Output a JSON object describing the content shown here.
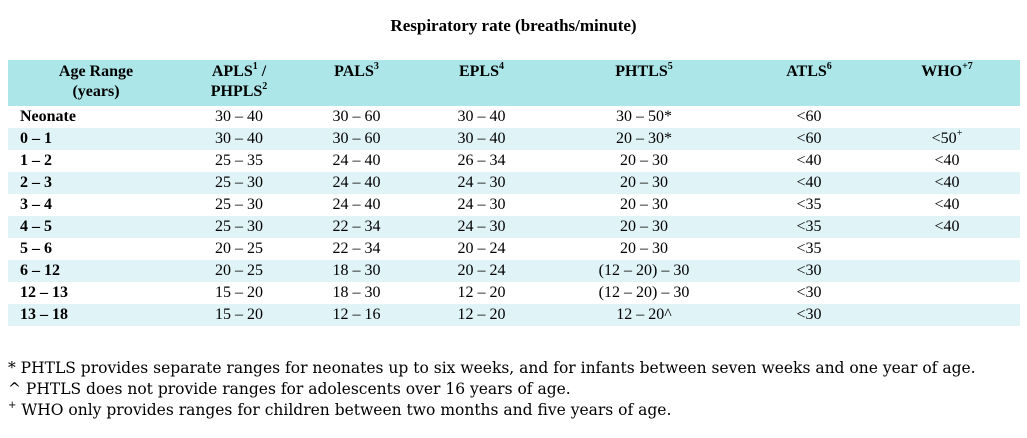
{
  "title": "Respiratory rate (breaths/minute)",
  "headers": [
    {
      "key": "age",
      "label": "Age Range",
      "label2": "(years)",
      "sup": "",
      "label3": ""
    },
    {
      "key": "apls",
      "label": "APLS",
      "sup": "1",
      "label_after": " /",
      "label2": "PHPLS",
      "sup2": "2"
    },
    {
      "key": "pals",
      "label": "PALS",
      "sup": "3"
    },
    {
      "key": "epls",
      "label": "EPLS",
      "sup": "4"
    },
    {
      "key": "phtls",
      "label": "PHTLS",
      "sup": "5"
    },
    {
      "key": "atls",
      "label": "ATLS",
      "sup": "6"
    },
    {
      "key": "who",
      "label": "WHO",
      "sup": "+7"
    }
  ],
  "rows": [
    {
      "age": "Neonate",
      "apls": "30 – 40",
      "pals": "30 – 60",
      "epls": "30 – 40",
      "phtls": "30 – 50*",
      "atls": "<60",
      "who": "",
      "who_sup": ""
    },
    {
      "age": "0 – 1",
      "apls": "30 – 40",
      "pals": "30 – 60",
      "epls": "30 – 40",
      "phtls": "20 – 30*",
      "atls": "<60",
      "who": "<50",
      "who_sup": "+"
    },
    {
      "age": "1 – 2",
      "apls": "25 – 35",
      "pals": "24 – 40",
      "epls": "26 – 34",
      "phtls": "20 – 30",
      "atls": "<40",
      "who": "<40",
      "who_sup": ""
    },
    {
      "age": "2 – 3",
      "apls": "25 – 30",
      "pals": "24 – 40",
      "epls": "24 – 30",
      "phtls": "20 – 30",
      "atls": "<40",
      "who": "<40",
      "who_sup": ""
    },
    {
      "age": "3 – 4",
      "apls": "25 – 30",
      "pals": "24 – 40",
      "epls": "24 – 30",
      "phtls": "20 – 30",
      "atls": "<35",
      "who": "<40",
      "who_sup": ""
    },
    {
      "age": "4 – 5",
      "apls": "25 – 30",
      "pals": "22 – 34",
      "epls": "24 – 30",
      "phtls": "20 – 30",
      "atls": "<35",
      "who": "<40",
      "who_sup": ""
    },
    {
      "age": "5 – 6",
      "apls": "20 – 25",
      "pals": "22 – 34",
      "epls": "20 – 24",
      "phtls": "20 – 30",
      "atls": "<35",
      "who": "",
      "who_sup": ""
    },
    {
      "age": "6 – 12",
      "apls": "20 – 25",
      "pals": "18 – 30",
      "epls": "20 – 24",
      "phtls": "(12 – 20) – 30",
      "atls": "<30",
      "who": "",
      "who_sup": ""
    },
    {
      "age": "12 – 13",
      "apls": "15 – 20",
      "pals": "18 – 30",
      "epls": "12 – 20",
      "phtls": "(12 – 20) – 30",
      "atls": "<30",
      "who": "",
      "who_sup": ""
    },
    {
      "age": "13 – 18",
      "apls": "15 – 20",
      "pals": "12 – 16",
      "epls": "12 – 20",
      "phtls": "12 – 20^",
      "atls": "<30",
      "who": "",
      "who_sup": ""
    }
  ],
  "footnotes": [
    {
      "mark": "",
      "text": "* PHTLS provides separate ranges for neonates up to six weeks, and for infants between seven weeks and one year of age."
    },
    {
      "mark": "",
      "text": "^ PHTLS does not provide ranges for adolescents over 16 years of age."
    },
    {
      "mark": "+",
      "text": " WHO only provides ranges for children between two months and five years of age."
    }
  ],
  "colors": {
    "header_bg": "#ade6e9",
    "stripe_bg": "#e0f3f6",
    "plain_bg": "#ffffff"
  }
}
